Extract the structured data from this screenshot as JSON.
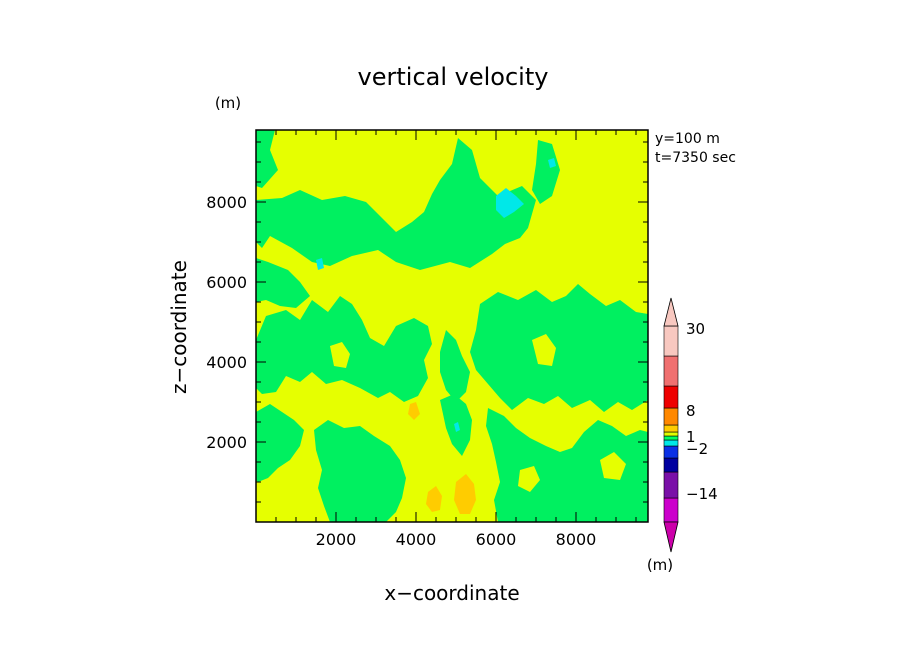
{
  "chart_data": {
    "type": "heatmap",
    "title": "vertical velocity",
    "xlabel": "x−coordinate",
    "ylabel": "z−coordinate",
    "x_unit": "(m)",
    "y_unit": "(m)",
    "xlim": [
      0,
      9800
    ],
    "ylim": [
      0,
      9800
    ],
    "x_ticks": [
      2000,
      4000,
      6000,
      8000
    ],
    "y_ticks": [
      2000,
      4000,
      6000,
      8000
    ],
    "x_tick_labels": [
      "2000",
      "4000",
      "6000",
      "8000"
    ],
    "y_tick_labels": [
      "2000",
      "4000",
      "6000",
      "8000"
    ],
    "info_lines": [
      "y=100  m",
      "t=7350  sec"
    ],
    "colorbar": {
      "unit": "(m)",
      "labels": [
        {
          "value": 30,
          "text": "30"
        },
        {
          "value": 8,
          "text": "8"
        },
        {
          "value": 1,
          "text": "1"
        },
        {
          "value": -2,
          "text": "−2"
        },
        {
          "value": -14,
          "text": "−14"
        }
      ],
      "bands": [
        {
          "color": "#cc00aa"
        },
        {
          "color": "#cc00cc"
        },
        {
          "color": "#7a10a8"
        },
        {
          "color": "#0000a0"
        },
        {
          "color": "#0a30e6"
        },
        {
          "color": "#00e8e8"
        },
        {
          "color": "#00ff60"
        },
        {
          "color": "#e0ff00"
        },
        {
          "color": "#ffcc00"
        },
        {
          "color": "#ff8800"
        },
        {
          "color": "#ee0000"
        },
        {
          "color": "#f07070"
        },
        {
          "color": "#f8c8c0"
        },
        {
          "color": "#f8c8c0"
        }
      ]
    },
    "colors": {
      "background": "#e6ff00",
      "green": "#00f060",
      "cyan": "#00e8e8",
      "orange": "#ffcc00",
      "blue": "#0a30e6"
    }
  }
}
